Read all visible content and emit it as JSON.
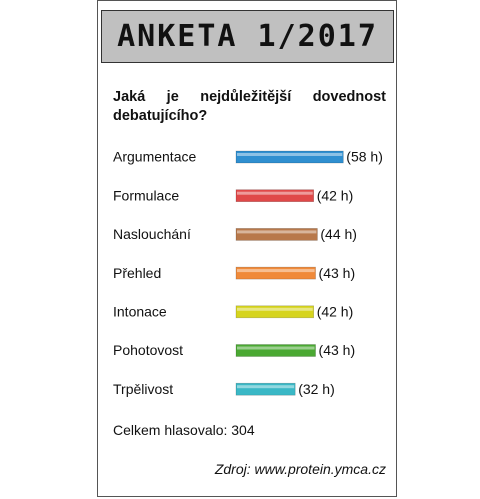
{
  "chart_data": {
    "type": "bar",
    "orientation": "horizontal",
    "title": "ANKETA 1/2017",
    "subtitle": "Jaká je nejdůležitější dovednost debatujícího?",
    "categories": [
      "Argumentace",
      "Formulace",
      "Naslouchání",
      "Přehled",
      "Intonace",
      "Pohotovost",
      "Trpělivost"
    ],
    "values": [
      58,
      42,
      44,
      43,
      42,
      43,
      32
    ],
    "value_labels": [
      "(58 h)",
      "(42 h)",
      "(44 h)",
      "(43 h)",
      "(42 h)",
      "(43 h)",
      "(32 h)"
    ],
    "colors": [
      "#2f8fd0",
      "#e04848",
      "#b8784a",
      "#f08a3a",
      "#d6d41e",
      "#4aa832",
      "#3ab8c6"
    ],
    "note": "Celkem hlasovalo: 304",
    "source": "Zdroj: www.protein.ymca.cz"
  }
}
